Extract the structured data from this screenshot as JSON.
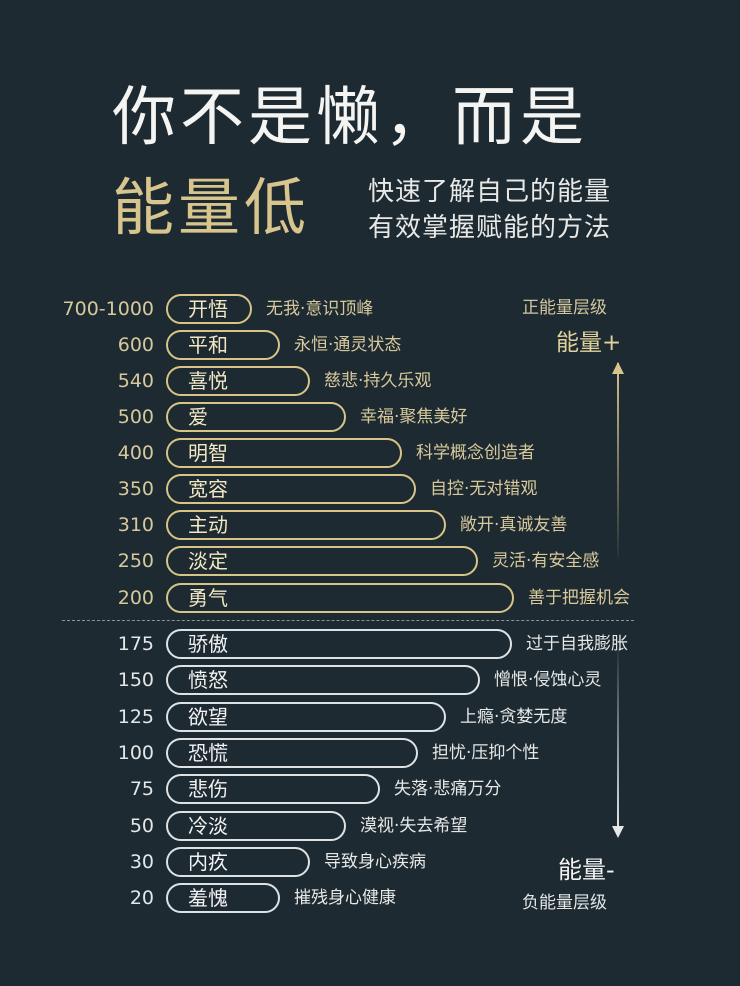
{
  "header": {
    "title_line1": "你不是懒，而是",
    "title_line2": "能量低",
    "subtitle_line1": "快速了解自己的能量",
    "subtitle_line2": "有效掌握赋能的方法"
  },
  "side": {
    "positive_level": "正能量层级",
    "energy_plus": "能量+",
    "energy_minus": "能量-",
    "negative_level": "负能量层级",
    "positive_color": "#d8c48a",
    "negative_color": "#e6e8e8"
  },
  "levels": {
    "positive": [
      {
        "value": "700-1000",
        "name": "开悟",
        "desc": "无我·意识顶峰"
      },
      {
        "value": "600",
        "name": "平和",
        "desc": "永恒·通灵状态"
      },
      {
        "value": "540",
        "name": "喜悦",
        "desc": "慈悲·持久乐观"
      },
      {
        "value": "500",
        "name": "爱",
        "desc": "幸福·聚焦美好"
      },
      {
        "value": "400",
        "name": "明智",
        "desc": "科学概念创造者"
      },
      {
        "value": "350",
        "name": "宽容",
        "desc": "自控·无对错观"
      },
      {
        "value": "310",
        "name": "主动",
        "desc": "敞开·真诚友善"
      },
      {
        "value": "250",
        "name": "淡定",
        "desc": "灵活·有安全感"
      },
      {
        "value": "200",
        "name": "勇气",
        "desc": "善于把握机会"
      }
    ],
    "negative": [
      {
        "value": "175",
        "name": "骄傲",
        "desc": "过于自我膨胀"
      },
      {
        "value": "150",
        "name": "愤怒",
        "desc": "憎恨·侵蚀心灵"
      },
      {
        "value": "125",
        "name": "欲望",
        "desc": "上瘾·贪婪无度"
      },
      {
        "value": "100",
        "name": "恐慌",
        "desc": "担忧·压抑个性"
      },
      {
        "value": "75",
        "name": "悲伤",
        "desc": "失落·悲痛万分"
      },
      {
        "value": "50",
        "name": "冷淡",
        "desc": "漠视·失去希望"
      },
      {
        "value": "30",
        "name": "内疚",
        "desc": "导致身心疾病"
      },
      {
        "value": "20",
        "name": "羞愧",
        "desc": "摧残身心健康"
      }
    ]
  },
  "colors": {
    "background": "#1d2a31",
    "gold": "#d8c58d",
    "white": "#f4f4f2"
  }
}
